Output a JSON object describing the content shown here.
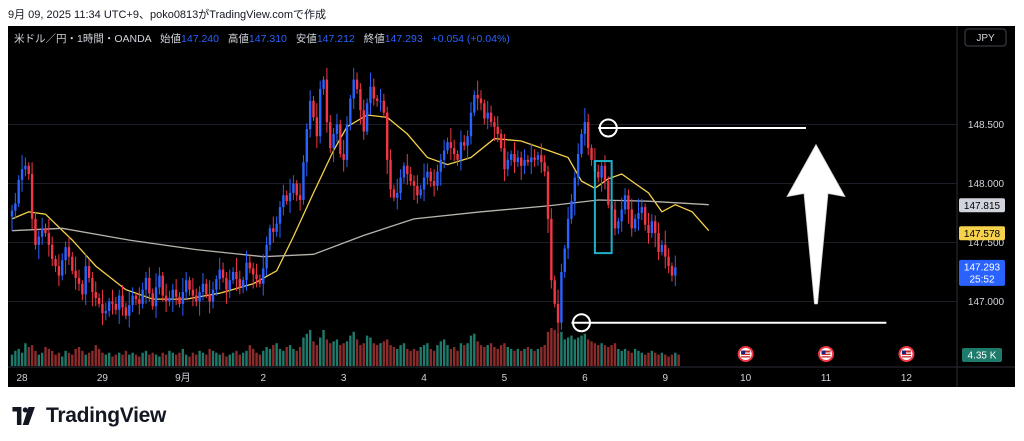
{
  "caption": "9月 09, 2025 11:34 UTC+9、poko0813がTradingView.comで作成",
  "brand": {
    "name": "TradingView"
  },
  "header": {
    "symbol": "米ドル／円・1時間・OANDA",
    "open_label": "始値",
    "open": "147.240",
    "high_label": "高値",
    "high": "147.310",
    "low_label": "安値",
    "low": "147.212",
    "close_label": "終値",
    "close": "147.293",
    "change": "+0.054 (+0.04%)"
  },
  "currency_button": "JPY",
  "colors": {
    "background": "#000000",
    "up": "#2962ff",
    "down": "#f23645",
    "ma_fast": "#f5d14c",
    "ma_slow": "#b8b4ad",
    "volume_up": "#1e7a6b",
    "volume_down": "#8c2b2b",
    "annotation": "#ffffff",
    "box": "#1fb0c8",
    "text": "#d1d4dc",
    "header_value": "#2962ff"
  },
  "icons": [
    "us-flag-icon",
    "tradingview-logo-icon",
    "up-arrow-icon"
  ],
  "chart_data": {
    "type": "candlestick",
    "symbol": "USD/JPY",
    "timeframe": "1時間",
    "ylim": [
      146.64,
      149.08
    ],
    "y_ticks": [
      147.0,
      147.5,
      148.0,
      148.5
    ],
    "y_tick_labels": [
      "147.000",
      "147.500",
      "148.000",
      "148.500"
    ],
    "x_tick_labels": [
      {
        "label": "28",
        "bar": 3
      },
      {
        "label": "29",
        "bar": 27
      },
      {
        "label": "9月",
        "bar": 51
      },
      {
        "label": "2",
        "bar": 75
      },
      {
        "label": "3",
        "bar": 99
      },
      {
        "label": "4",
        "bar": 123
      },
      {
        "label": "5",
        "bar": 147
      },
      {
        "label": "6",
        "bar": 171
      },
      {
        "label": "9",
        "bar": 195
      },
      {
        "label": "10",
        "bar": 219
      },
      {
        "label": "11",
        "bar": 243
      },
      {
        "label": "12",
        "bar": 267
      }
    ],
    "closes": [
      147.77,
      147.83,
      148.03,
      148.12,
      148.15,
      148.08,
      147.7,
      147.48,
      147.55,
      147.62,
      147.58,
      147.48,
      147.36,
      147.3,
      147.22,
      147.35,
      147.46,
      147.38,
      147.26,
      147.2,
      147.15,
      147.06,
      147.3,
      147.2,
      147.08,
      147.03,
      146.98,
      146.9,
      146.92,
      147.0,
      146.98,
      146.93,
      147.05,
      146.95,
      146.88,
      146.97,
      147.05,
      147.02,
      146.98,
      147.1,
      147.2,
      147.07,
      146.96,
      147.12,
      147.22,
      147.05,
      147.0,
      147.03,
      147.1,
      147.04,
      146.98,
      147.08,
      147.18,
      147.1,
      147.05,
      147.0,
      147.08,
      147.15,
      147.06,
      147.0,
      147.1,
      147.19,
      147.27,
      147.2,
      147.1,
      147.18,
      147.25,
      147.19,
      147.12,
      147.18,
      147.33,
      147.28,
      147.23,
      147.19,
      147.15,
      147.28,
      147.48,
      147.62,
      147.59,
      147.66,
      147.8,
      147.9,
      147.85,
      147.92,
      148.0,
      147.9,
      147.86,
      148.18,
      148.46,
      148.7,
      148.56,
      148.4,
      148.8,
      148.88,
      148.52,
      148.3,
      148.42,
      148.5,
      148.25,
      148.2,
      148.5,
      148.72,
      148.88,
      148.8,
      148.62,
      148.44,
      148.68,
      148.82,
      148.72,
      148.7,
      148.7,
      148.6,
      148.2,
      147.95,
      147.88,
      147.92,
      148.05,
      148.15,
      148.08,
      148.02,
      147.98,
      147.9,
      147.95,
      148.05,
      148.1,
      148.02,
      147.98,
      148.1,
      148.2,
      148.28,
      148.35,
      148.3,
      148.25,
      148.2,
      148.35,
      148.32,
      148.4,
      148.6,
      148.75,
      148.72,
      148.68,
      148.55,
      148.6,
      148.52,
      148.48,
      148.42,
      148.3,
      148.12,
      148.2,
      148.25,
      148.18,
      148.22,
      148.15,
      148.2,
      148.18,
      148.22,
      148.2,
      148.24,
      148.18,
      148.1,
      147.7,
      147.18,
      146.98,
      146.82,
      147.25,
      147.45,
      147.7,
      147.85,
      148.05,
      148.25,
      148.42,
      148.52,
      148.3,
      148.2,
      148.1,
      148.05,
      148.15,
      148.02,
      147.82,
      147.78,
      147.62,
      147.68,
      147.78,
      147.9,
      147.78,
      147.62,
      147.7,
      147.75,
      147.8,
      147.65,
      147.58,
      147.68,
      147.58,
      147.42,
      147.48,
      147.38,
      147.3,
      147.22,
      147.29
    ],
    "series": [
      {
        "name": "",
        "type": "moving_average",
        "color": "#f5d14c",
        "points": [
          [
            0,
            147.7
          ],
          [
            5,
            147.76
          ],
          [
            10,
            147.74
          ],
          [
            18,
            147.52
          ],
          [
            25,
            147.3
          ],
          [
            34,
            147.1
          ],
          [
            42,
            147.02
          ],
          [
            52,
            147.02
          ],
          [
            62,
            147.07
          ],
          [
            72,
            147.15
          ],
          [
            79,
            147.26
          ],
          [
            84,
            147.55
          ],
          [
            90,
            147.92
          ],
          [
            96,
            148.28
          ],
          [
            100,
            148.48
          ],
          [
            106,
            148.58
          ],
          [
            112,
            148.56
          ],
          [
            118,
            148.42
          ],
          [
            124,
            148.22
          ],
          [
            130,
            148.16
          ],
          [
            137,
            148.22
          ],
          [
            144,
            148.38
          ],
          [
            152,
            148.36
          ],
          [
            160,
            148.28
          ],
          [
            166,
            148.22
          ],
          [
            170,
            148.02
          ],
          [
            174,
            147.96
          ],
          [
            178,
            148.04
          ],
          [
            182,
            148.08
          ],
          [
            186,
            148.0
          ],
          [
            190,
            147.92
          ],
          [
            194,
            147.76
          ],
          [
            198,
            147.82
          ],
          [
            203,
            147.76
          ],
          [
            208,
            147.6
          ]
        ]
      },
      {
        "name": "",
        "type": "moving_average",
        "color": "#b8b4ad",
        "points": [
          [
            0,
            147.6
          ],
          [
            15,
            147.62
          ],
          [
            35,
            147.52
          ],
          [
            55,
            147.44
          ],
          [
            75,
            147.38
          ],
          [
            90,
            147.4
          ],
          [
            105,
            147.56
          ],
          [
            120,
            147.7
          ],
          [
            140,
            147.76
          ],
          [
            160,
            147.81
          ],
          [
            175,
            147.86
          ],
          [
            190,
            147.85
          ],
          [
            208,
            147.82
          ]
        ]
      }
    ],
    "price_labels": [
      {
        "value": 147.815,
        "text": "147.815",
        "color": "#d1d4dc"
      },
      {
        "value": 147.578,
        "text": "147.578",
        "color": "#f5d14c"
      },
      {
        "value": 147.293,
        "text": "147.293",
        "color": "#2962ff",
        "countdown": "25:52"
      }
    ],
    "volume": {
      "label": "4.35 K",
      "values": [
        0.3,
        0.4,
        0.45,
        0.35,
        0.6,
        0.5,
        0.55,
        0.4,
        0.3,
        0.35,
        0.5,
        0.45,
        0.4,
        0.3,
        0.35,
        0.25,
        0.4,
        0.35,
        0.3,
        0.45,
        0.5,
        0.4,
        0.3,
        0.35,
        0.4,
        0.55,
        0.45,
        0.35,
        0.3,
        0.35,
        0.25,
        0.3,
        0.35,
        0.3,
        0.4,
        0.3,
        0.35,
        0.3,
        0.25,
        0.35,
        0.4,
        0.3,
        0.35,
        0.3,
        0.25,
        0.35,
        0.3,
        0.4,
        0.35,
        0.3,
        0.35,
        0.45,
        0.3,
        0.25,
        0.35,
        0.3,
        0.4,
        0.35,
        0.3,
        0.45,
        0.4,
        0.35,
        0.3,
        0.35,
        0.25,
        0.3,
        0.35,
        0.4,
        0.3,
        0.35,
        0.4,
        0.55,
        0.45,
        0.35,
        0.3,
        0.4,
        0.5,
        0.45,
        0.55,
        0.6,
        0.45,
        0.4,
        0.5,
        0.55,
        0.45,
        0.4,
        0.5,
        0.75,
        0.85,
        0.95,
        0.65,
        0.55,
        0.75,
        0.95,
        0.7,
        0.6,
        0.65,
        0.7,
        0.55,
        0.6,
        0.65,
        0.8,
        0.9,
        0.7,
        0.55,
        0.6,
        0.8,
        0.75,
        0.6,
        0.55,
        0.6,
        0.65,
        0.7,
        0.55,
        0.5,
        0.45,
        0.55,
        0.6,
        0.45,
        0.4,
        0.45,
        0.4,
        0.5,
        0.55,
        0.6,
        0.45,
        0.4,
        0.55,
        0.65,
        0.7,
        0.55,
        0.45,
        0.5,
        0.4,
        0.6,
        0.55,
        0.6,
        0.8,
        0.85,
        0.65,
        0.55,
        0.5,
        0.55,
        0.6,
        0.5,
        0.45,
        0.55,
        0.6,
        0.5,
        0.45,
        0.4,
        0.45,
        0.4,
        0.45,
        0.5,
        0.45,
        0.4,
        0.45,
        0.5,
        0.55,
        0.9,
        1.0,
        0.95,
        0.85,
        0.9,
        0.7,
        0.75,
        0.8,
        0.7,
        0.75,
        0.8,
        0.85,
        0.7,
        0.65,
        0.6,
        0.55,
        0.6,
        0.55,
        0.5,
        0.55,
        0.6,
        0.45,
        0.4,
        0.45,
        0.4,
        0.35,
        0.45,
        0.4,
        0.35,
        0.3,
        0.35,
        0.4,
        0.35,
        0.3,
        0.35,
        0.3,
        0.25,
        0.3,
        0.35,
        0.3
      ]
    },
    "event_markers_at_bars": [
      219,
      243,
      267
    ],
    "annotations": [
      {
        "type": "horizontal_line",
        "price": 148.47,
        "from_bar": 175,
        "to_bar": 237
      },
      {
        "type": "horizontal_line",
        "price": 146.82,
        "from_bar": 167,
        "to_bar": 261
      },
      {
        "type": "circle",
        "price": 148.47,
        "bar": 178
      },
      {
        "type": "circle",
        "price": 146.82,
        "bar": 170
      },
      {
        "type": "rectangle",
        "price_top": 148.19,
        "price_bottom": 147.41,
        "from_bar": 174,
        "to_bar": 179
      },
      {
        "type": "arrow_up",
        "price_bottom": 146.98,
        "price_top": 148.33,
        "bar": 240
      }
    ]
  }
}
